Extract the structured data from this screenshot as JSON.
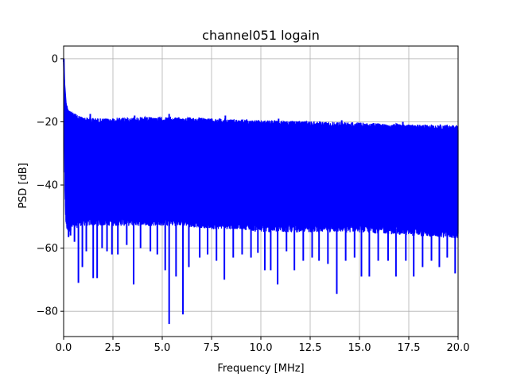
{
  "chart_data": {
    "type": "line",
    "title": "channel051 logain",
    "xlabel": "Frequency [MHz]",
    "ylabel": "PSD [dB]",
    "xlim": [
      0,
      20
    ],
    "ylim": [
      -88,
      4
    ],
    "grid": true,
    "legend": "none",
    "colors": {
      "series": "#0000ff",
      "grid": "#b0b0b0",
      "axis": "#000000"
    },
    "x_ticks": [
      {
        "value": 0,
        "label": "0.0"
      },
      {
        "value": 2.5,
        "label": "2.5"
      },
      {
        "value": 5,
        "label": "5.0"
      },
      {
        "value": 7.5,
        "label": "7.5"
      },
      {
        "value": 10,
        "label": "10.0"
      },
      {
        "value": 12.5,
        "label": "12.5"
      },
      {
        "value": 15,
        "label": "15.0"
      },
      {
        "value": 17.5,
        "label": "17.5"
      },
      {
        "value": 20,
        "label": "20.0"
      }
    ],
    "y_ticks": [
      {
        "value": 0,
        "label": "0"
      },
      {
        "value": -20,
        "label": "−20"
      },
      {
        "value": -40,
        "label": "−40"
      },
      {
        "value": -60,
        "label": "−60"
      },
      {
        "value": -80,
        "label": "−80"
      }
    ],
    "series": [
      {
        "x": [
          0.0,
          0.03,
          0.06,
          0.1,
          0.15,
          0.2,
          0.3,
          0.45,
          0.6,
          0.8,
          1.0,
          1.5,
          2.0,
          2.5,
          3.0,
          4.0,
          5.0,
          6.0,
          7.5,
          9.0,
          10.0,
          12.5,
          15.0,
          17.5,
          20.0
        ],
        "upper": [
          0,
          -6,
          -11,
          -13,
          -14,
          -15,
          -16,
          -17,
          -17.5,
          -18,
          -18.5,
          -18.7,
          -19,
          -18.8,
          -18.6,
          -18.5,
          -18.5,
          -18.6,
          -18.8,
          -19.2,
          -19.5,
          -19.8,
          -20.2,
          -20.8,
          -21
        ],
        "lower": [
          -2,
          -20,
          -40,
          -52,
          -54,
          -55,
          -55,
          -54,
          -54,
          -53,
          -53,
          -53,
          -53,
          -53,
          -53,
          -53,
          -53,
          -53,
          -54,
          -54,
          -55,
          -55,
          -55,
          -56,
          -57
        ],
        "dips": [
          {
            "x": 0.25,
            "y": -56.5
          },
          {
            "x": 0.35,
            "y": -56
          },
          {
            "x": 0.55,
            "y": -58
          },
          {
            "x": 0.75,
            "y": -71
          },
          {
            "x": 0.95,
            "y": -66
          },
          {
            "x": 1.15,
            "y": -61
          },
          {
            "x": 1.5,
            "y": -69.5
          },
          {
            "x": 1.7,
            "y": -69.5
          },
          {
            "x": 1.95,
            "y": -60
          },
          {
            "x": 2.2,
            "y": -61
          },
          {
            "x": 2.45,
            "y": -62
          },
          {
            "x": 2.75,
            "y": -62
          },
          {
            "x": 3.2,
            "y": -59
          },
          {
            "x": 3.55,
            "y": -71.5
          },
          {
            "x": 3.9,
            "y": -60
          },
          {
            "x": 4.4,
            "y": -61
          },
          {
            "x": 4.75,
            "y": -62
          },
          {
            "x": 5.15,
            "y": -67
          },
          {
            "x": 5.35,
            "y": -84
          },
          {
            "x": 5.7,
            "y": -69
          },
          {
            "x": 6.05,
            "y": -81
          },
          {
            "x": 6.35,
            "y": -66
          },
          {
            "x": 6.9,
            "y": -63
          },
          {
            "x": 7.3,
            "y": -62
          },
          {
            "x": 7.75,
            "y": -64
          },
          {
            "x": 8.15,
            "y": -70
          },
          {
            "x": 8.6,
            "y": -63
          },
          {
            "x": 9.05,
            "y": -62
          },
          {
            "x": 9.5,
            "y": -63
          },
          {
            "x": 9.85,
            "y": -61.5
          },
          {
            "x": 10.2,
            "y": -67
          },
          {
            "x": 10.5,
            "y": -67
          },
          {
            "x": 10.85,
            "y": -71.5
          },
          {
            "x": 11.3,
            "y": -61
          },
          {
            "x": 11.7,
            "y": -67
          },
          {
            "x": 12.15,
            "y": -64
          },
          {
            "x": 12.6,
            "y": -63
          },
          {
            "x": 12.95,
            "y": -64
          },
          {
            "x": 13.4,
            "y": -65
          },
          {
            "x": 13.85,
            "y": -74.5
          },
          {
            "x": 14.3,
            "y": -64
          },
          {
            "x": 14.75,
            "y": -63
          },
          {
            "x": 15.1,
            "y": -69
          },
          {
            "x": 15.5,
            "y": -69
          },
          {
            "x": 15.95,
            "y": -64
          },
          {
            "x": 16.45,
            "y": -64
          },
          {
            "x": 16.85,
            "y": -69
          },
          {
            "x": 17.35,
            "y": -64
          },
          {
            "x": 17.75,
            "y": -69
          },
          {
            "x": 18.2,
            "y": -66
          },
          {
            "x": 18.65,
            "y": -64
          },
          {
            "x": 19.05,
            "y": -66
          },
          {
            "x": 19.45,
            "y": -63
          },
          {
            "x": 19.85,
            "y": -68
          }
        ],
        "spikes": [
          {
            "x": 0.05,
            "y": -11
          },
          {
            "x": 1.35,
            "y": -17.5
          },
          {
            "x": 3.6,
            "y": -18
          },
          {
            "x": 5.35,
            "y": -17.5
          },
          {
            "x": 8.2,
            "y": -18
          },
          {
            "x": 10.9,
            "y": -19
          },
          {
            "x": 14.1,
            "y": -19.5
          },
          {
            "x": 17.2,
            "y": -20
          }
        ]
      }
    ]
  }
}
